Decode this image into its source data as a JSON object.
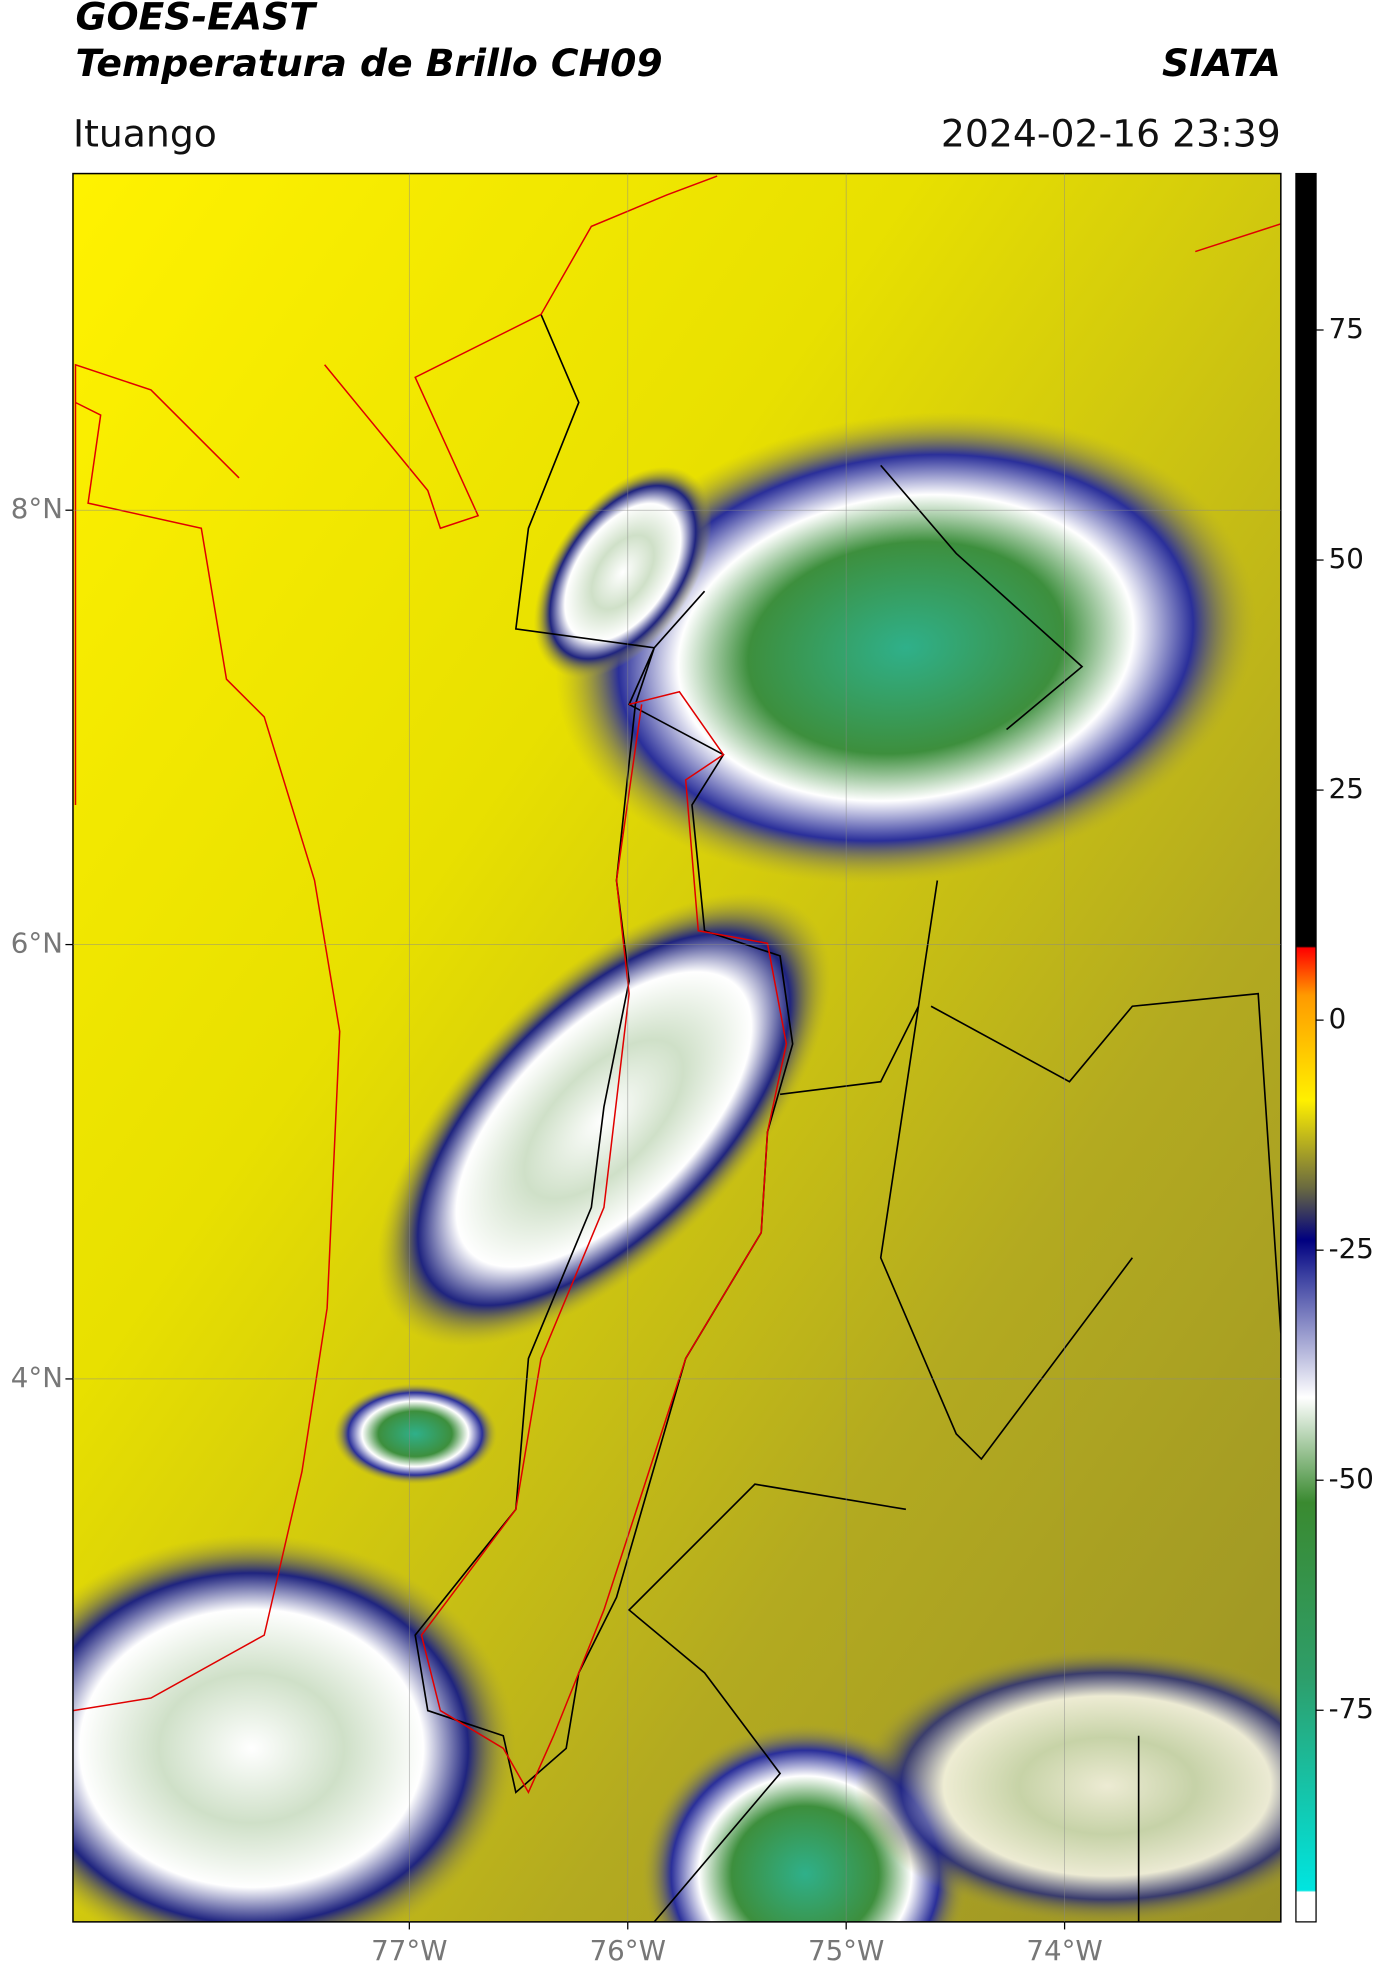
{
  "header": {
    "title": "GOES-EAST",
    "subtitle": "Temperatura de Brillo CH09",
    "brand": "SIATA",
    "location": "Ituango",
    "datetime": "2024-02-16 23:39"
  },
  "map": {
    "lonlim": [
      -78.54,
      -73.01
    ],
    "latlim": [
      1.5,
      9.55
    ],
    "lonticks": [
      {
        "value": -77,
        "label": "77°W"
      },
      {
        "value": -76,
        "label": "76°W"
      },
      {
        "value": -75,
        "label": "75°W"
      },
      {
        "value": -74,
        "label": "74°W"
      }
    ],
    "latticks": [
      {
        "value": 8,
        "label": "8°N"
      },
      {
        "value": 6,
        "label": "6°N"
      },
      {
        "value": 4,
        "label": "4°N"
      }
    ]
  },
  "colorbar": {
    "lim": [
      -98,
      92
    ],
    "ticks": [
      75,
      50,
      25,
      0,
      -25,
      -50,
      -75
    ]
  }
}
